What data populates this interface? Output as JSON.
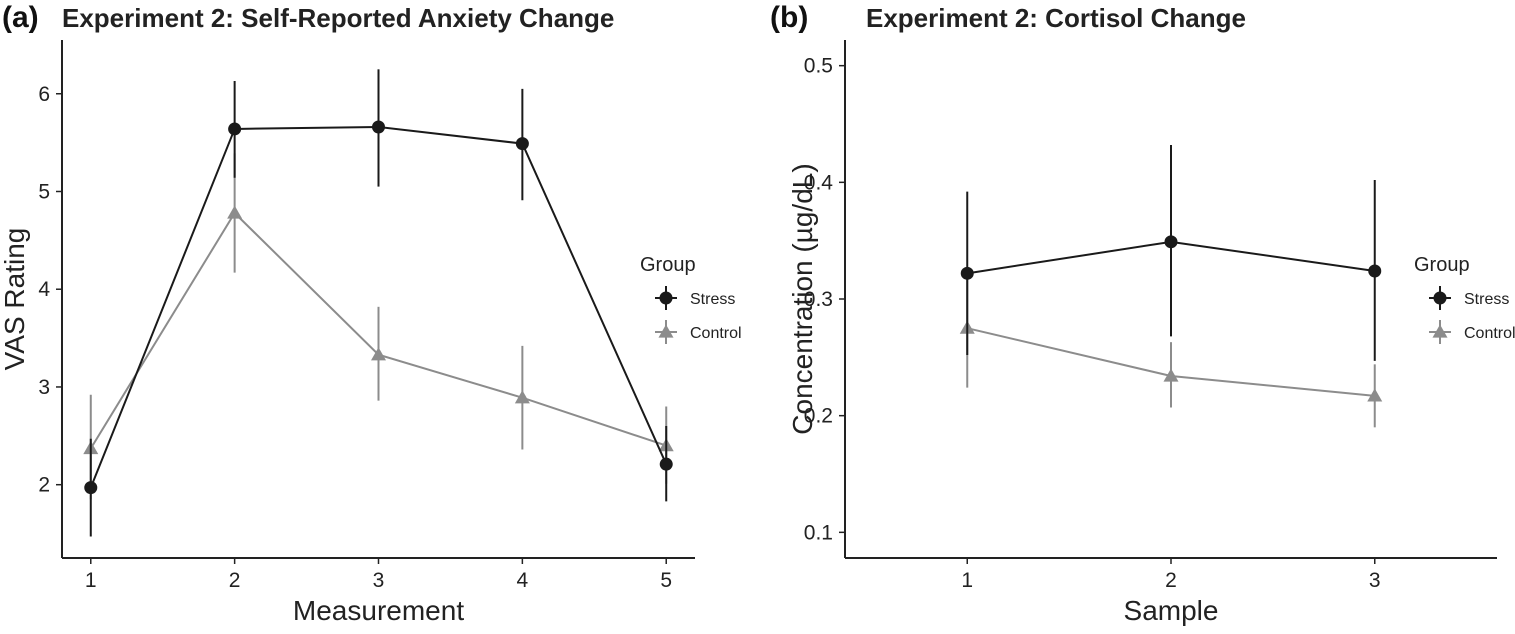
{
  "chart_data": [
    {
      "type": "line",
      "panel_label": "(a)",
      "title": "Experiment 2: Self-Reported Anxiety Change",
      "xlabel": "Measurement",
      "ylabel": "VAS Rating",
      "x": [
        1,
        2,
        3,
        4,
        5
      ],
      "x_ticks": [
        "1",
        "2",
        "3",
        "4",
        "5"
      ],
      "xlim": [
        0.8,
        5.2
      ],
      "y_ticks": [
        "2",
        "3",
        "4",
        "5",
        "6"
      ],
      "ylim": [
        1.25,
        6.55
      ],
      "grid": false,
      "legend_title": "Group",
      "legend_position": "right",
      "series": [
        {
          "name": "Stress",
          "color": "#1a1a1a",
          "marker": "circle",
          "values": [
            1.97,
            5.64,
            5.66,
            5.49,
            2.21
          ],
          "error_low": [
            1.47,
            5.14,
            5.05,
            4.91,
            1.83
          ],
          "error_high": [
            2.47,
            6.13,
            6.25,
            6.05,
            2.6
          ]
        },
        {
          "name": "Control",
          "color": "#8c8c8c",
          "marker": "triangle",
          "values": [
            2.37,
            4.78,
            3.33,
            2.89,
            2.4
          ],
          "error_low": [
            1.85,
            4.17,
            2.86,
            2.36,
            2.01
          ],
          "error_high": [
            2.92,
            5.39,
            3.82,
            3.42,
            2.8
          ]
        }
      ]
    },
    {
      "type": "line",
      "panel_label": "(b)",
      "title": "Experiment 2: Cortisol Change",
      "xlabel": "Sample",
      "ylabel": "Concentration (µg/dL)",
      "x": [
        1,
        2,
        3
      ],
      "x_ticks": [
        "1",
        "2",
        "3"
      ],
      "xlim": [
        0.4,
        3.6
      ],
      "y_ticks": [
        "0.1",
        "0.2",
        "0.3",
        "0.4",
        "0.5"
      ],
      "ylim": [
        0.078,
        0.522
      ],
      "grid": false,
      "legend_title": "Group",
      "legend_position": "right",
      "series": [
        {
          "name": "Stress",
          "color": "#1a1a1a",
          "marker": "circle",
          "values": [
            0.322,
            0.349,
            0.324
          ],
          "error_low": [
            0.252,
            0.268,
            0.247
          ],
          "error_high": [
            0.392,
            0.432,
            0.402
          ]
        },
        {
          "name": "Control",
          "color": "#8c8c8c",
          "marker": "triangle",
          "values": [
            0.275,
            0.234,
            0.217
          ],
          "error_low": [
            0.224,
            0.207,
            0.19
          ],
          "error_high": [
            0.326,
            0.263,
            0.244
          ]
        }
      ]
    }
  ]
}
